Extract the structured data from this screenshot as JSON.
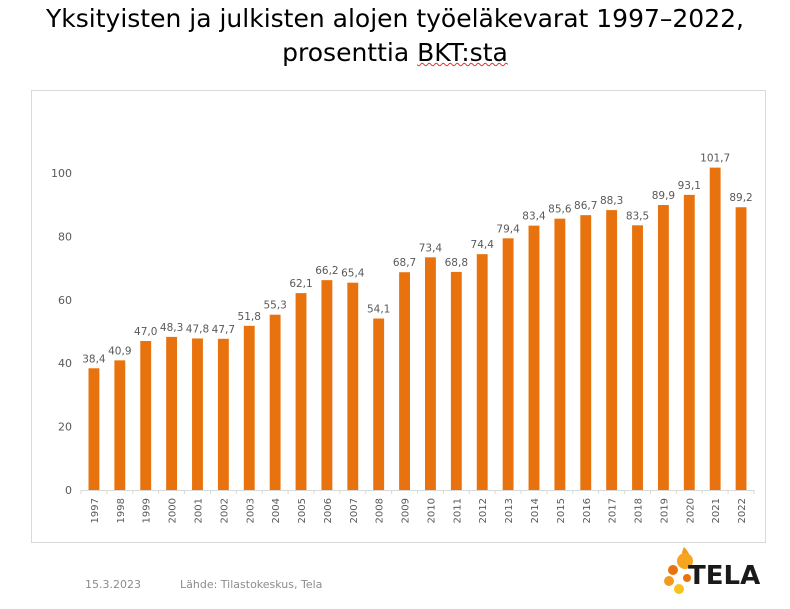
{
  "title": {
    "line1": "Yksityisten ja julkisten alojen työeläkevarat 1997–2022,",
    "line2_prefix": "prosenttia ",
    "line2_marked": "BKT:sta"
  },
  "footer": {
    "date": "15.3.2023",
    "source": "Lähde: Tilastokeskus, Tela"
  },
  "logo": {
    "text": "TELA",
    "icon": "tela-flame-logo-icon"
  },
  "colors": {
    "bar": "#e8730e",
    "axis": "#d9d9d9",
    "text": "#595959"
  },
  "chart_data": {
    "type": "bar",
    "categories": [
      "1997",
      "1998",
      "1999",
      "2000",
      "2001",
      "2002",
      "2003",
      "2004",
      "2005",
      "2006",
      "2007",
      "2008",
      "2009",
      "2010",
      "2011",
      "2012",
      "2013",
      "2014",
      "2015",
      "2016",
      "2017",
      "2018",
      "2019",
      "2020",
      "2021",
      "2022"
    ],
    "values": [
      38.4,
      40.9,
      47.0,
      48.3,
      47.8,
      47.7,
      51.8,
      55.3,
      62.1,
      66.2,
      65.4,
      54.1,
      68.7,
      73.4,
      68.8,
      74.4,
      79.4,
      83.4,
      85.6,
      86.7,
      88.3,
      83.5,
      89.9,
      93.1,
      101.7,
      89.2
    ],
    "value_labels": [
      "38,4",
      "40,9",
      "47,0",
      "48,3",
      "47,8",
      "47,7",
      "51,8",
      "55,3",
      "62,1",
      "66,2",
      "65,4",
      "54,1",
      "68,7",
      "73,4",
      "68,8",
      "74,4",
      "79,4",
      "83,4",
      "85,6",
      "86,7",
      "88,3",
      "83,5",
      "89,9",
      "93,1",
      "101,7",
      "89,2"
    ],
    "yticks": [
      "0",
      "20",
      "40",
      "60",
      "80",
      "100"
    ],
    "ylim": [
      0,
      100
    ],
    "xlabel": "",
    "ylabel": "",
    "grid": false,
    "legend": "none"
  }
}
